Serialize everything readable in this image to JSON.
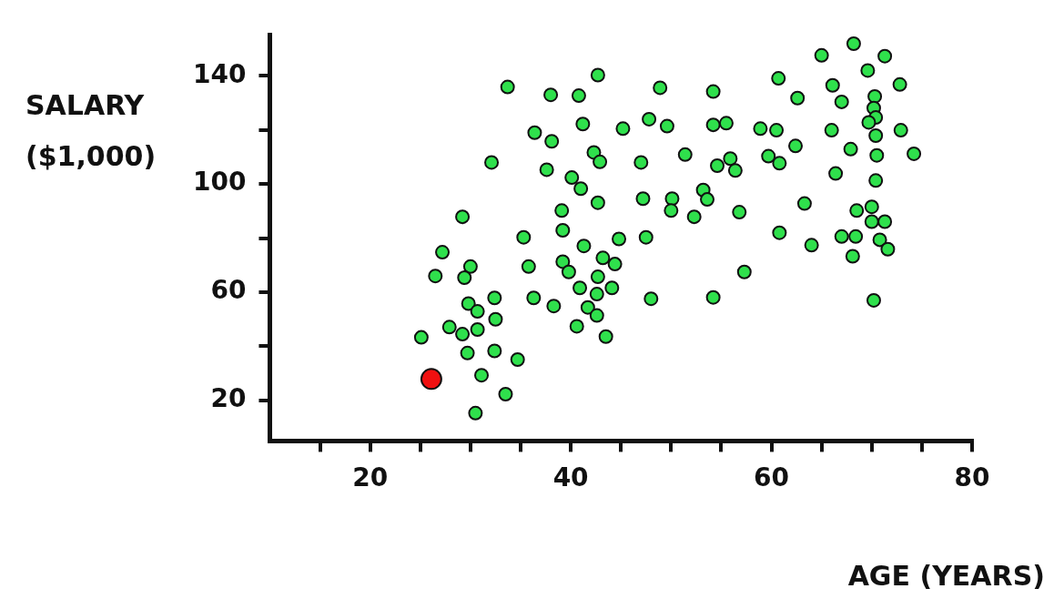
{
  "chart_data": {
    "type": "scatter",
    "xlabel": "AGE (YEARS)",
    "ylabel": "SALARY ($1,000)",
    "xlim": [
      10,
      80
    ],
    "ylim": [
      5,
      155
    ],
    "xticks": [
      {
        "value": 15,
        "label": null
      },
      20,
      {
        "value": 25,
        "label": null
      },
      {
        "value": 30,
        "label": null
      },
      {
        "value": 35,
        "label": null
      },
      40,
      {
        "value": 45,
        "label": null
      },
      {
        "value": 50,
        "label": null
      },
      {
        "value": 55,
        "label": null
      },
      60,
      {
        "value": 65,
        "label": null
      },
      {
        "value": 70,
        "label": null
      },
      {
        "value": 75,
        "label": null
      },
      80
    ],
    "yticks": [
      20,
      {
        "value": 40,
        "label": null
      },
      60,
      {
        "value": 80,
        "label": null
      },
      100,
      {
        "value": 120,
        "label": null
      },
      140
    ],
    "grid": false,
    "legend": false,
    "marker": "circle",
    "series": [
      {
        "color": "#2fe04c",
        "x": [
          25.1,
          27.2,
          26.5,
          29.2,
          30.0,
          29.4,
          29.8,
          30.7,
          27.9,
          29.2,
          30.7,
          29.7,
          32.4,
          32.5,
          32.4,
          34.7,
          31.1,
          33.5,
          30.5,
          35.3,
          39.2,
          35.8,
          39.2,
          39.8,
          41.3,
          44.8,
          47.5,
          43.2,
          44.4,
          42.7,
          40.9,
          44.1,
          42.6,
          41.7,
          42.6,
          48.0,
          36.3,
          38.3,
          40.6,
          43.5,
          42.7,
          33.7,
          38.0,
          40.8,
          48.9,
          54.2,
          41.2,
          36.4,
          38.1,
          45.2,
          47.8,
          49.6,
          54.2,
          55.5,
          58.9,
          32.1,
          42.3,
          42.9,
          37.6,
          47.0,
          51.4,
          54.6,
          55.9,
          56.4,
          40.1,
          41.0,
          42.7,
          47.2,
          50.1,
          53.2,
          53.6,
          39.1,
          50.0,
          52.3,
          56.8,
          68.2,
          65.0,
          71.3,
          69.6,
          60.7,
          66.1,
          72.8,
          62.6,
          67.0,
          70.3,
          70.2,
          70.4,
          69.7,
          60.5,
          66.0,
          72.9,
          70.4,
          62.4,
          67.9,
          59.7,
          60.8,
          70.5,
          74.2,
          66.4,
          70.4,
          63.3,
          68.5,
          70.0,
          70.0,
          71.3,
          60.8,
          64.0,
          67.0,
          68.4,
          70.8,
          71.6,
          68.1,
          57.3,
          54.2,
          70.2
        ],
        "values": [
          43.3,
          74.8,
          66.0,
          87.9,
          69.5,
          65.4,
          55.8,
          52.9,
          47.1,
          44.5,
          46.2,
          37.5,
          57.9,
          50.0,
          38.3,
          35.1,
          29.3,
          22.3,
          15.3,
          80.3,
          82.9,
          69.5,
          71.3,
          67.5,
          77.1,
          79.7,
          80.3,
          72.7,
          70.4,
          65.7,
          61.6,
          61.6,
          59.3,
          54.4,
          51.4,
          57.6,
          57.9,
          54.9,
          47.4,
          43.6,
          140.3,
          135.9,
          133.0,
          132.7,
          135.6,
          134.2,
          122.2,
          119.0,
          115.8,
          120.5,
          124.0,
          121.4,
          121.9,
          122.5,
          120.5,
          108.0,
          111.7,
          108.2,
          105.3,
          108.0,
          110.9,
          106.8,
          109.4,
          105.0,
          102.4,
          98.3,
          93.1,
          94.6,
          94.6,
          97.8,
          94.3,
          90.2,
          90.2,
          87.9,
          89.6,
          151.9,
          147.6,
          147.3,
          142.0,
          139.1,
          136.5,
          136.8,
          131.8,
          130.4,
          132.4,
          128.1,
          124.6,
          122.8,
          119.9,
          119.9,
          119.9,
          117.9,
          114.1,
          112.9,
          110.3,
          107.7,
          110.6,
          111.2,
          103.9,
          101.3,
          92.8,
          90.2,
          91.6,
          86.1,
          86.1,
          82.0,
          77.4,
          80.6,
          80.6,
          79.4,
          75.9,
          73.3,
          67.5,
          58.1,
          57.0
        ]
      },
      {
        "color": "#f01010",
        "x": [
          26.1
        ],
        "values": [
          27.9
        ]
      }
    ]
  }
}
